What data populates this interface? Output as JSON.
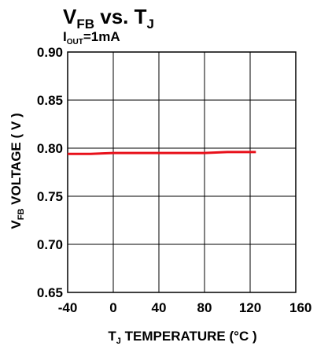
{
  "chart_data": {
    "type": "line",
    "title": {
      "main": "V",
      "main_sub": "FB",
      "main_rest": " vs. T",
      "main_sub2": "J"
    },
    "subtitle": {
      "main": "I",
      "sub": "OUT",
      "rest": "=1mA"
    },
    "xlabel": {
      "main": "T",
      "sub": "J",
      "rest": " TEMPERATURE (°C )"
    },
    "ylabel": {
      "main": "V",
      "sub": "FB",
      "rest": " VOLTAGE ( V )"
    },
    "xlim": [
      -40,
      160
    ],
    "ylim": [
      0.65,
      0.9
    ],
    "xticks": [
      -40,
      0,
      40,
      80,
      120,
      160
    ],
    "xtick_labels": [
      "-40",
      "0",
      "40",
      "80",
      "120",
      "160"
    ],
    "yticks": [
      0.65,
      0.7,
      0.75,
      0.8,
      0.85,
      0.9
    ],
    "ytick_labels": [
      "0.65",
      "0.70",
      "0.75",
      "0.80",
      "0.85",
      "0.90"
    ],
    "grid": true,
    "series": [
      {
        "color": "#e8101a",
        "x": [
          -40,
          -20,
          0,
          20,
          40,
          60,
          80,
          100,
          125
        ],
        "y": [
          0.794,
          0.794,
          0.795,
          0.795,
          0.795,
          0.795,
          0.795,
          0.796,
          0.796
        ]
      }
    ]
  }
}
